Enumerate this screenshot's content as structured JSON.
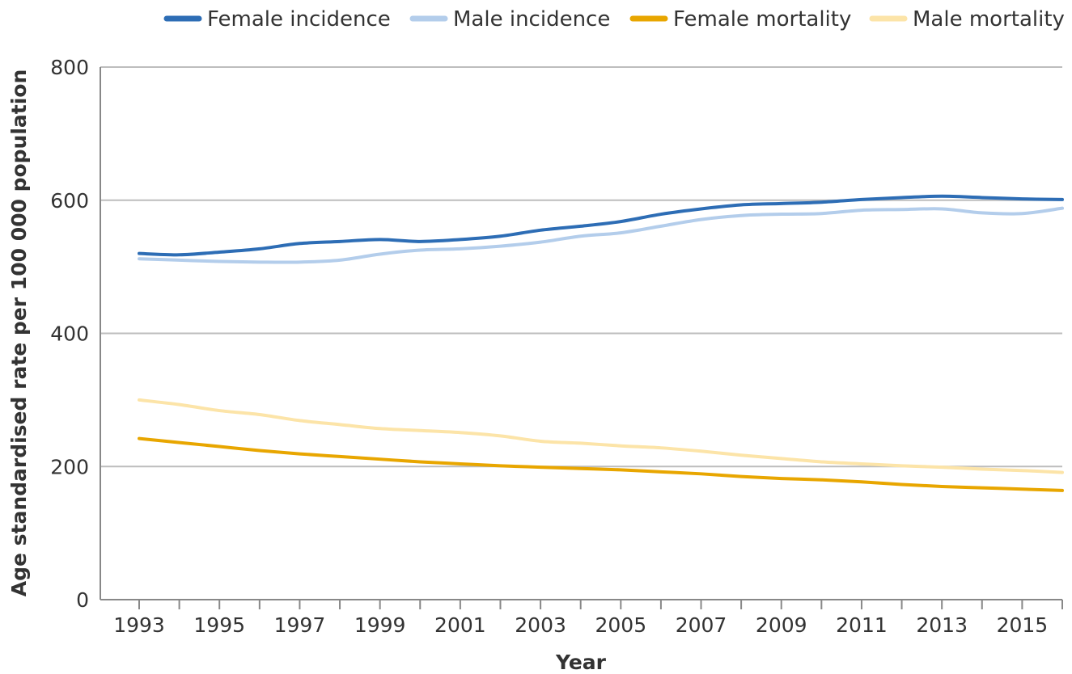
{
  "chart_data": {
    "type": "line",
    "title": "",
    "xlabel": "Year",
    "ylabel": "Age standardised rate per 100 000 population",
    "xlim": [
      1993,
      2016
    ],
    "ylim": [
      0,
      800
    ],
    "yticks": [
      0,
      200,
      400,
      600,
      800
    ],
    "xtick_labels": [
      "1993",
      "1995",
      "1997",
      "1999",
      "2001",
      "2003",
      "2005",
      "2007",
      "2009",
      "2011",
      "2013",
      "2015"
    ],
    "grid": "horizontal",
    "legend_position": "top",
    "x": [
      1993,
      1994,
      1995,
      1996,
      1997,
      1998,
      1999,
      2000,
      2001,
      2002,
      2003,
      2004,
      2005,
      2006,
      2007,
      2008,
      2009,
      2010,
      2011,
      2012,
      2013,
      2014,
      2015,
      2016
    ],
    "series": [
      {
        "name": "Female incidence",
        "color": "#2d6db5",
        "values": [
          520,
          518,
          522,
          527,
          535,
          538,
          541,
          538,
          541,
          546,
          555,
          561,
          568,
          579,
          587,
          593,
          595,
          597,
          601,
          604,
          606,
          604,
          602,
          601
        ]
      },
      {
        "name": "Male incidence",
        "color": "#b3cdeb",
        "values": [
          512,
          510,
          508,
          507,
          507,
          510,
          519,
          525,
          527,
          531,
          537,
          546,
          551,
          561,
          571,
          577,
          579,
          580,
          585,
          586,
          587,
          581,
          580,
          588
        ]
      },
      {
        "name": "Female mortality",
        "color": "#e8a600",
        "values": [
          242,
          236,
          230,
          224,
          219,
          215,
          211,
          207,
          204,
          201,
          199,
          197,
          195,
          192,
          189,
          185,
          182,
          180,
          177,
          173,
          170,
          168,
          166,
          164
        ]
      },
      {
        "name": "Male mortality",
        "color": "#fce4a8",
        "values": [
          300,
          293,
          284,
          278,
          269,
          263,
          257,
          254,
          251,
          246,
          238,
          235,
          231,
          228,
          223,
          217,
          212,
          207,
          204,
          201,
          199,
          196,
          194,
          191
        ]
      }
    ]
  }
}
